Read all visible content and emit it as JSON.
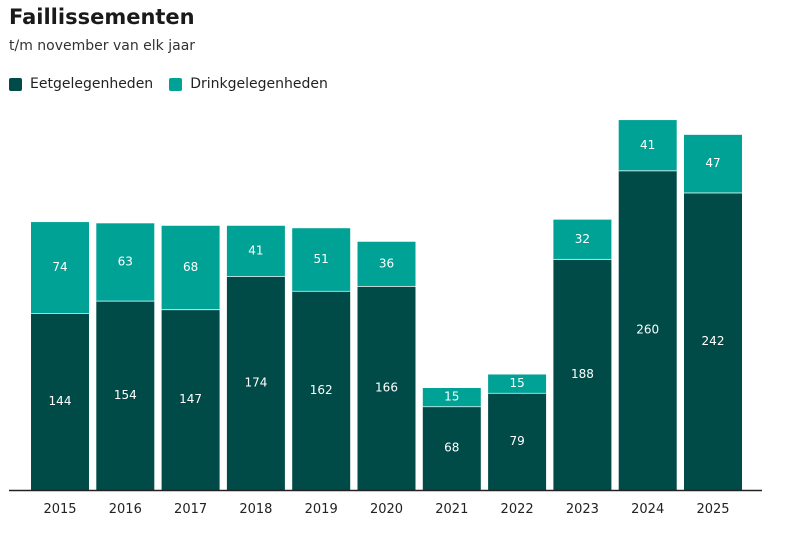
{
  "chart_data": {
    "type": "bar",
    "stacked": true,
    "title": "Faillissementen",
    "subtitle": "t/m november van elk jaar",
    "categories": [
      "2015",
      "2016",
      "2017",
      "2018",
      "2019",
      "2020",
      "2021",
      "2022",
      "2023",
      "2024",
      "2025"
    ],
    "series": [
      {
        "name": "Eetgelegenheden",
        "color": "#004b48",
        "values": [
          144,
          154,
          147,
          174,
          162,
          166,
          68,
          79,
          188,
          260,
          242
        ]
      },
      {
        "name": "Drinkgelegenheden",
        "color": "#00a296",
        "values": [
          74,
          63,
          68,
          41,
          51,
          36,
          15,
          15,
          32,
          41,
          47
        ]
      }
    ],
    "ylim": [
      0,
      301
    ],
    "grid": false,
    "legend": "top-left",
    "data_labels": true
  }
}
